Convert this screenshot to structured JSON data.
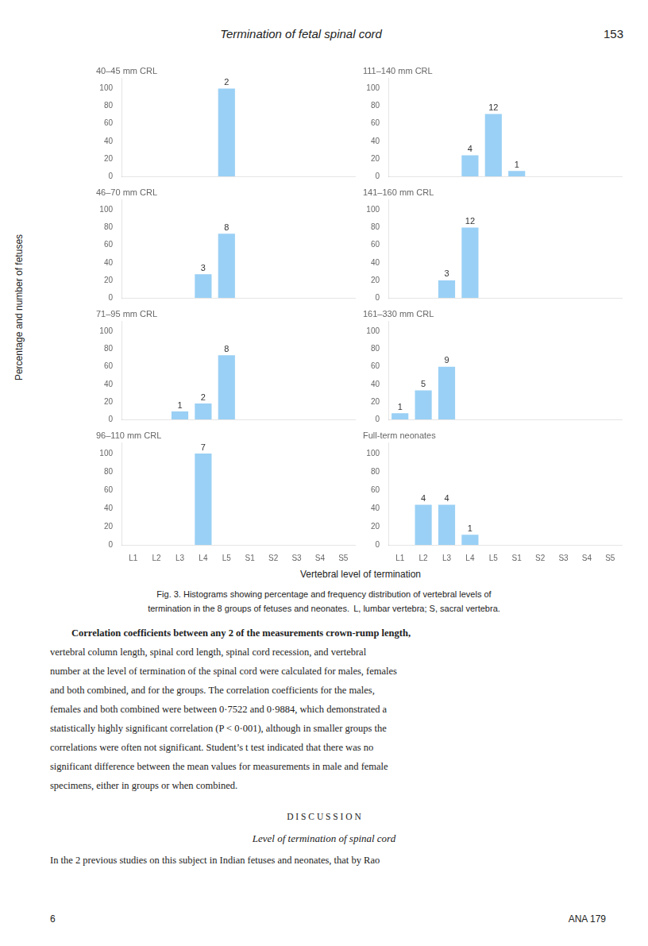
{
  "title": "Termination of fetal spinal cord",
  "page_number": "153",
  "xlabel": "Vertebral level of termination",
  "ylabel": "Percentage and number of fetuses",
  "caption": [
    "Fig. 3. Histograms showing percentage and frequency distribution of vertebral levels of",
    "termination in the 8 groups of fetuses and neonates.  L, lumbar vertebra; S, sacral vertebra."
  ],
  "body_text": [
    "Correlation coefficients between any 2 of the measurements crown-rump length,",
    "vertebral column length, spinal cord length, spinal cord recession, and vertebral",
    "number at the level of termination of the spinal cord were calculated for males, females",
    "and both combined, and for the groups. The correlation coefficients for the males,",
    "females and both combined were between 0·7522 and 0·9884, which demonstrated a",
    "statistically highly significant correlation (P < 0·001), although in smaller groups the",
    "correlations were often not significant. Student’s t test indicated that there was no",
    "significant difference between the mean values for measurements in male and female",
    "specimens, either in groups or when combined."
  ],
  "discussion_heading": "D I S C U S S I O N",
  "discussion_subheading": "Level of termination of spinal cord",
  "discussion_first_line": "In the 2 previous studies on this subject in Indian fetuses and neonates, that by Rao",
  "footer_left": "6",
  "footer_right": "ANA 179",
  "chart_data": [
    {
      "type": "bar",
      "title": "40–45 mm CRL",
      "categories": [
        "L1",
        "L2",
        "L3",
        "L4",
        "L5",
        "S1",
        "S2",
        "S3",
        "S4",
        "S5"
      ],
      "values": [
        null,
        null,
        null,
        null,
        100,
        null,
        null,
        null,
        null,
        null
      ],
      "counts": [
        null,
        null,
        null,
        null,
        2,
        null,
        null,
        null,
        null,
        null
      ],
      "ylim": [
        0,
        112
      ],
      "yticks": [
        0,
        20,
        40,
        60,
        80,
        100
      ],
      "grid": false,
      "tick_labels": "y"
    },
    {
      "type": "bar",
      "title": "111–140 mm CRL",
      "categories": [
        "L1",
        "L2",
        "L3",
        "L4",
        "L5",
        "S1",
        "S2",
        "S3",
        "S4",
        "S5"
      ],
      "values": [
        null,
        null,
        null,
        24,
        71,
        6,
        null,
        null,
        null,
        null
      ],
      "counts": [
        null,
        null,
        null,
        4,
        12,
        1,
        null,
        null,
        null,
        null
      ],
      "ylim": [
        0,
        112
      ],
      "yticks": [
        0,
        20,
        40,
        60,
        80,
        100
      ],
      "grid": false,
      "tick_labels": "y"
    },
    {
      "type": "bar",
      "title": "46–70 mm CRL",
      "categories": [
        "L1",
        "L2",
        "L3",
        "L4",
        "L5",
        "S1",
        "S2",
        "S3",
        "S4",
        "S5"
      ],
      "values": [
        null,
        null,
        null,
        27,
        73,
        null,
        null,
        null,
        null,
        null
      ],
      "counts": [
        null,
        null,
        null,
        3,
        8,
        null,
        null,
        null,
        null,
        null
      ],
      "ylim": [
        0,
        112
      ],
      "yticks": [
        0,
        20,
        40,
        60,
        80,
        100
      ],
      "grid": false,
      "tick_labels": "y"
    },
    {
      "type": "bar",
      "title": "141–160 mm CRL",
      "categories": [
        "L1",
        "L2",
        "L3",
        "L4",
        "L5",
        "S1",
        "S2",
        "S3",
        "S4",
        "S5"
      ],
      "values": [
        null,
        null,
        20,
        80,
        null,
        null,
        null,
        null,
        null,
        null
      ],
      "counts": [
        null,
        null,
        3,
        12,
        null,
        null,
        null,
        null,
        null,
        null
      ],
      "ylim": [
        0,
        112
      ],
      "yticks": [
        0,
        20,
        40,
        60,
        80,
        100
      ],
      "grid": false,
      "tick_labels": "y"
    },
    {
      "type": "bar",
      "title": "71–95 mm CRL",
      "categories": [
        "L1",
        "L2",
        "L3",
        "L4",
        "L5",
        "S1",
        "S2",
        "S3",
        "S4",
        "S5"
      ],
      "values": [
        null,
        null,
        9,
        18,
        73,
        null,
        null,
        null,
        null,
        null
      ],
      "counts": [
        null,
        null,
        1,
        2,
        8,
        null,
        null,
        null,
        null,
        null
      ],
      "ylim": [
        0,
        112
      ],
      "yticks": [
        0,
        20,
        40,
        60,
        80,
        100
      ],
      "grid": false,
      "tick_labels": "y"
    },
    {
      "type": "bar",
      "title": "161–330 mm CRL",
      "categories": [
        "L1",
        "L2",
        "L3",
        "L4",
        "L5",
        "S1",
        "S2",
        "S3",
        "S4",
        "S5"
      ],
      "values": [
        7,
        33,
        60,
        null,
        null,
        null,
        null,
        null,
        null,
        null
      ],
      "counts": [
        1,
        5,
        9,
        null,
        null,
        null,
        null,
        null,
        null,
        null
      ],
      "ylim": [
        0,
        112
      ],
      "yticks": [
        0,
        20,
        40,
        60,
        80,
        100
      ],
      "grid": false,
      "tick_labels": "y"
    },
    {
      "type": "bar",
      "title": "96–110 mm CRL",
      "categories": [
        "L1",
        "L2",
        "L3",
        "L4",
        "L5",
        "S1",
        "S2",
        "S3",
        "S4",
        "S5"
      ],
      "values": [
        null,
        null,
        null,
        100,
        null,
        null,
        null,
        null,
        null,
        null
      ],
      "counts": [
        null,
        null,
        null,
        7,
        null,
        null,
        null,
        null,
        null,
        null
      ],
      "ylim": [
        0,
        112
      ],
      "yticks": [
        0,
        20,
        40,
        60,
        80,
        100
      ],
      "grid": false
    },
    {
      "type": "bar",
      "title": "Full-term neonates",
      "categories": [
        "L1",
        "L2",
        "L3",
        "L4",
        "L5",
        "S1",
        "S2",
        "S3",
        "S4",
        "S5"
      ],
      "values": [
        null,
        44,
        44,
        11,
        null,
        null,
        null,
        null,
        null,
        null
      ],
      "counts": [
        null,
        4,
        4,
        1,
        null,
        null,
        null,
        null,
        null,
        null
      ],
      "ylim": [
        0,
        112
      ],
      "yticks": [
        0,
        20,
        40,
        60,
        80,
        100
      ],
      "grid": false
    }
  ]
}
